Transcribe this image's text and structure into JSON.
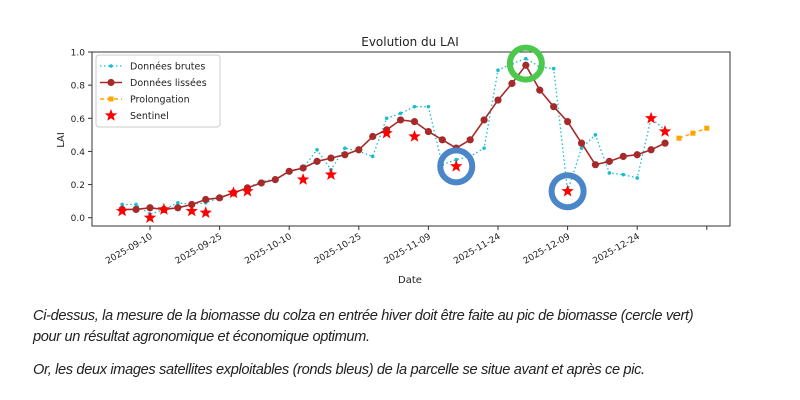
{
  "chart_data": {
    "type": "line",
    "title": "Evolution du LAI",
    "xlabel": "Date",
    "ylabel": "LAI",
    "x_unit": "days since 2025-09-10",
    "xlim": [
      -12.5,
      125
    ],
    "ylim": [
      -0.05,
      1.0
    ],
    "yticks": [
      0.0,
      0.2,
      0.4,
      0.6,
      0.8,
      1.0
    ],
    "ytick_labels": [
      "0.0",
      "0.2",
      "0.4",
      "0.6",
      "0.8",
      "1.0"
    ],
    "xticks": [
      0,
      15,
      30,
      45,
      60,
      75,
      90,
      105,
      120
    ],
    "xtick_labels": [
      "2025-09-10",
      "2025-09-25",
      "2025-10-10",
      "2025-10-25",
      "2025-11-09",
      "2025-11-24",
      "2025-12-09",
      "2025-12-24",
      ""
    ],
    "legend_position": "top-left",
    "series": [
      {
        "name": "Données brutes",
        "style": "dotted-point",
        "color": "#17becf",
        "x": [
          -6,
          -3,
          0,
          3,
          6,
          9,
          12,
          15,
          18,
          21,
          24,
          27,
          30,
          33,
          36,
          39,
          42,
          45,
          48,
          51,
          54,
          57,
          60,
          63,
          66,
          69,
          72,
          75,
          78,
          81,
          84,
          87,
          90,
          93,
          96,
          99,
          102,
          105,
          108,
          111
        ],
        "values": [
          0.08,
          0.08,
          0.02,
          0.05,
          0.09,
          0.08,
          0.09,
          0.12,
          0.15,
          0.18,
          0.22,
          0.23,
          0.28,
          0.3,
          0.41,
          0.29,
          0.42,
          0.4,
          0.37,
          0.6,
          0.63,
          0.67,
          0.67,
          0.32,
          0.35,
          0.37,
          0.42,
          0.89,
          0.93,
          0.96,
          0.91,
          0.9,
          0.16,
          0.42,
          0.5,
          0.27,
          0.26,
          0.24,
          0.6,
          0.53
        ]
      },
      {
        "name": "Données lissées",
        "style": "solid-circle",
        "color": "#a52a2a",
        "x": [
          -6,
          -3,
          0,
          3,
          6,
          9,
          12,
          15,
          18,
          21,
          24,
          27,
          30,
          33,
          36,
          39,
          42,
          45,
          48,
          51,
          54,
          57,
          60,
          63,
          66,
          69,
          72,
          75,
          78,
          81,
          84,
          87,
          90,
          93,
          96,
          99,
          102,
          105,
          108,
          111
        ],
        "values": [
          0.05,
          0.05,
          0.06,
          0.05,
          0.06,
          0.08,
          0.11,
          0.12,
          0.15,
          0.18,
          0.21,
          0.23,
          0.28,
          0.3,
          0.34,
          0.36,
          0.38,
          0.41,
          0.49,
          0.53,
          0.59,
          0.58,
          0.52,
          0.47,
          0.42,
          0.47,
          0.59,
          0.71,
          0.81,
          0.92,
          0.77,
          0.67,
          0.58,
          0.45,
          0.32,
          0.34,
          0.37,
          0.38,
          0.41,
          0.45
        ]
      },
      {
        "name": "Prolongation",
        "style": "dashed-square",
        "color": "#ffa500",
        "x": [
          114,
          117,
          120
        ],
        "values": [
          0.48,
          0.51,
          0.54
        ]
      },
      {
        "name": "Sentinel",
        "style": "star",
        "color": "#ff0000",
        "x": [
          -6,
          0,
          3,
          9,
          12,
          18,
          21,
          33,
          39,
          51,
          57,
          66,
          90,
          108,
          111
        ],
        "values": [
          0.04,
          0.0,
          0.05,
          0.04,
          0.03,
          0.15,
          0.16,
          0.23,
          0.26,
          0.51,
          0.49,
          0.31,
          0.16,
          0.6,
          0.52
        ]
      }
    ],
    "annotations": [
      {
        "type": "circle",
        "color": "#4a86c8",
        "x": 66,
        "y": 0.31
      },
      {
        "type": "circle",
        "color": "#4cc94c",
        "x": 81,
        "y": 0.93
      },
      {
        "type": "circle",
        "color": "#4a86c8",
        "x": 90,
        "y": 0.16
      }
    ]
  },
  "caption": {
    "line1": "Ci-dessus, la mesure de la biomasse du colza en entrée hiver doit être faite au pic de biomasse (cercle vert)",
    "line2": "pour un résultat agronomique et économique optimum.",
    "line3": "Or, les deux images satellites exploitables (ronds bleus) de la parcelle se situe avant et après ce pic."
  }
}
